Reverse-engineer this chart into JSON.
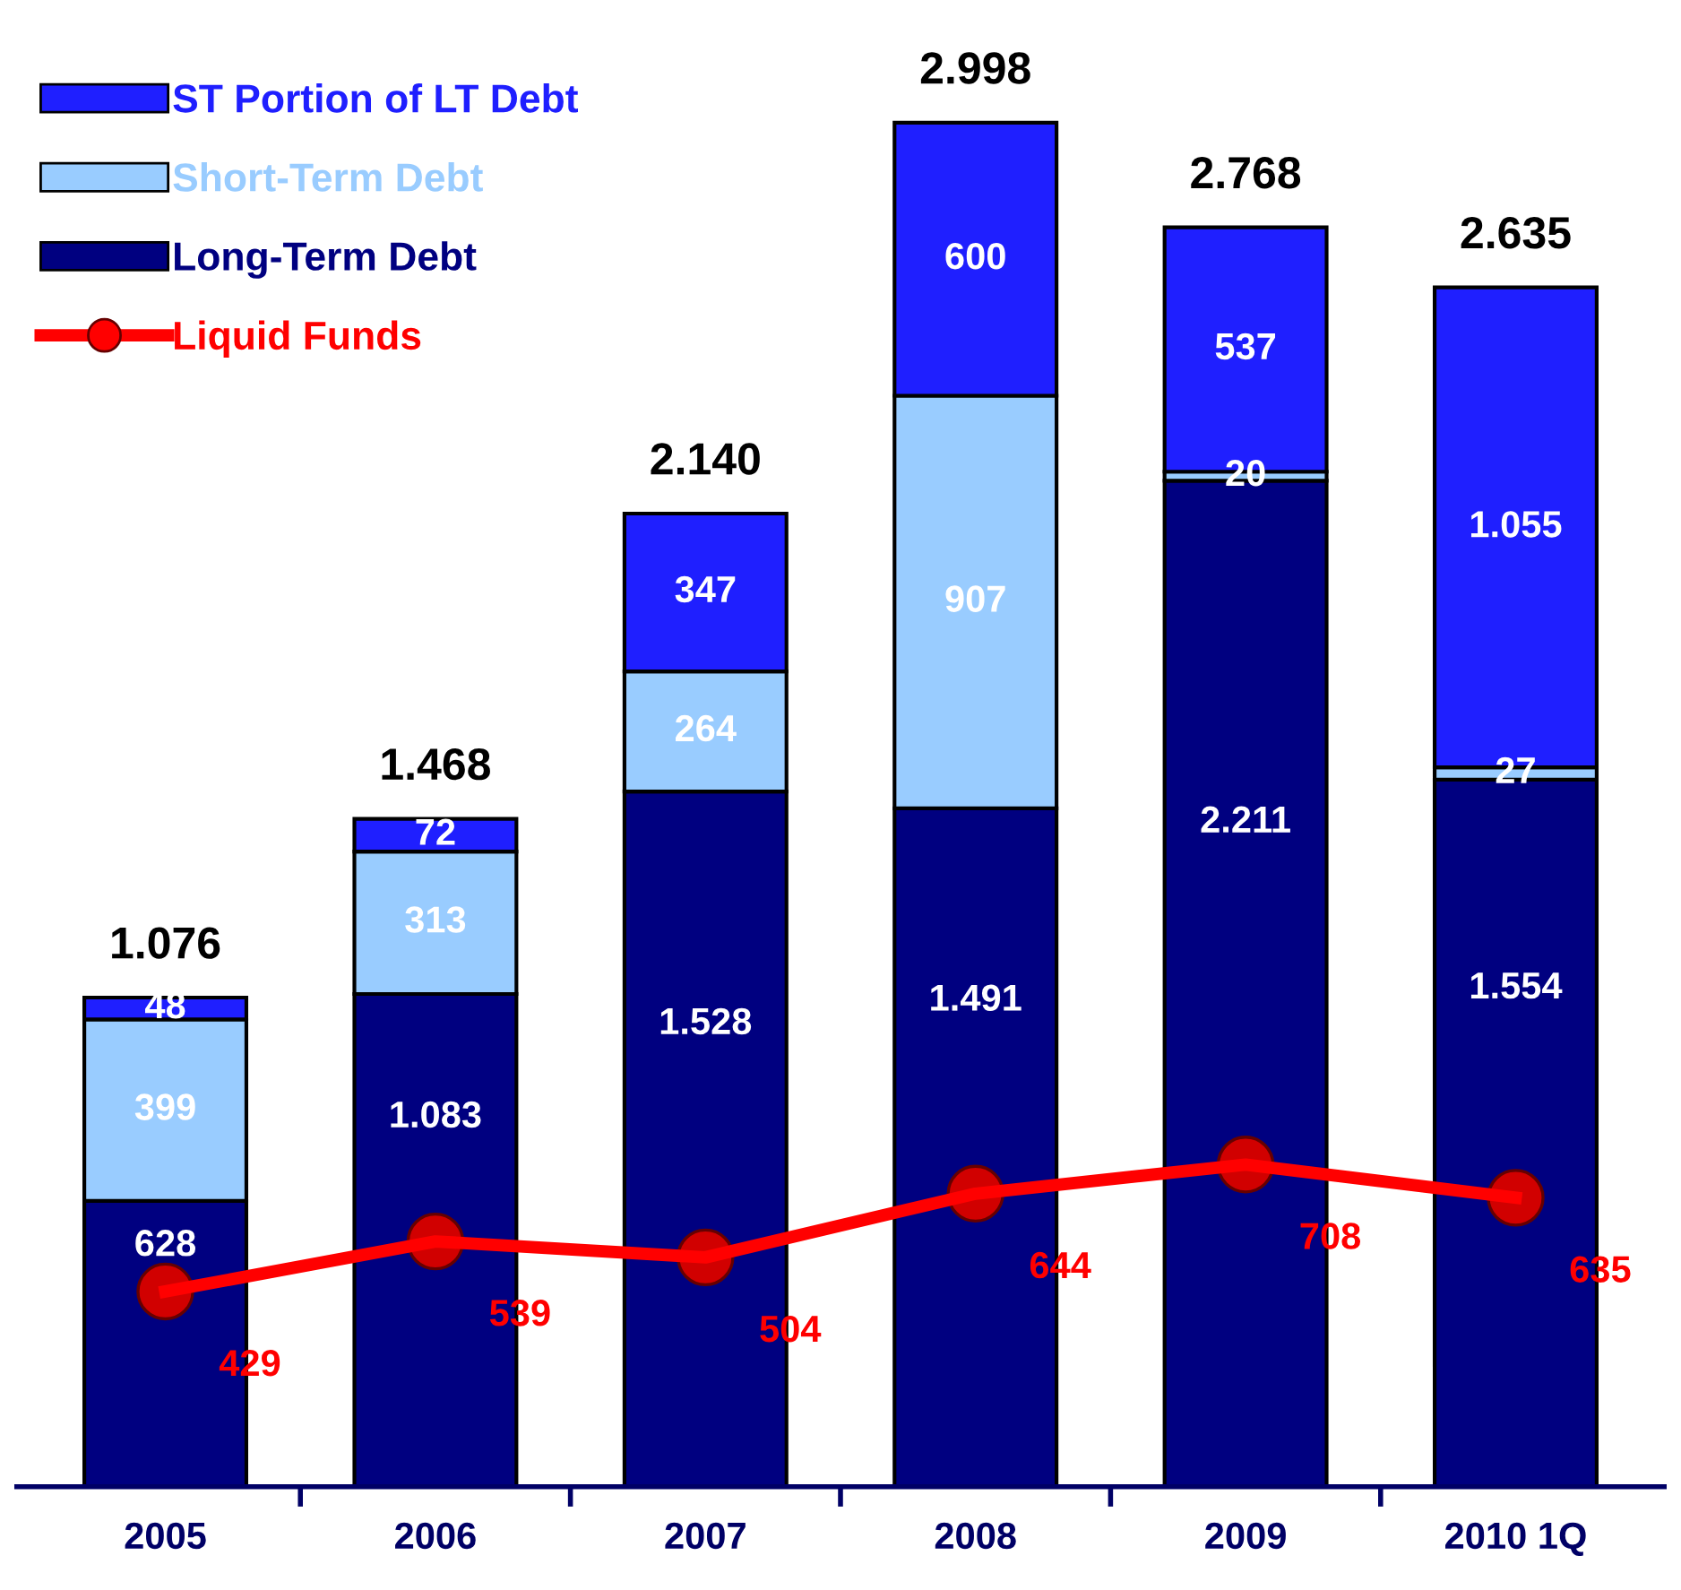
{
  "chart_data": {
    "type": "bar",
    "stacked": true,
    "tick_labels": "x",
    "legend": "top left",
    "grid": false,
    "categories": [
      "2005",
      "2006",
      "2007",
      "2008",
      "2009",
      "2010 1Q"
    ],
    "series": [
      {
        "name": "Long-Term Debt",
        "color": "#000080",
        "values": [
          628,
          1083,
          1528,
          1491,
          2211,
          1554
        ],
        "value_labels": [
          "628",
          "1.083",
          "1.528",
          "1.491",
          "2.211",
          "1.554"
        ]
      },
      {
        "name": "Short-Term Debt",
        "color": "#99ccff",
        "values": [
          399,
          313,
          264,
          907,
          20,
          27
        ],
        "value_labels": [
          "399",
          "313",
          "264",
          "907",
          "20",
          "27"
        ]
      },
      {
        "name": "ST Portion of LT Debt",
        "color": "#1f1fff",
        "values": [
          48,
          72,
          347,
          600,
          537,
          1055
        ],
        "value_labels": [
          "48",
          "72",
          "347",
          "600",
          "537",
          "1.055"
        ]
      },
      {
        "name": "Liquid Funds",
        "type": "line",
        "color": "#ff0000",
        "marker": "circle",
        "values": [
          429,
          539,
          504,
          644,
          708,
          635
        ],
        "value_labels": [
          "429",
          "539",
          "504",
          "644",
          "708",
          "635"
        ]
      }
    ],
    "totals": [
      "1.076",
      "1.468",
      "2.140",
      "2.998",
      "2.768",
      "2.635"
    ]
  }
}
